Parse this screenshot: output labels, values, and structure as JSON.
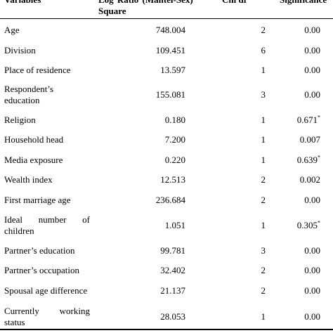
{
  "header": {
    "variable": "Variables",
    "lr_line1": "Log    Ratio    (Mantel-Sex)",
    "lr_line2": "Square",
    "df": "Chi   df",
    "sig": "Significance"
  },
  "rows": [
    {
      "variable": "Age",
      "lr": "748.004",
      "df": "2",
      "sig": "0.00",
      "star": ""
    },
    {
      "variable": "Division",
      "lr": "109.451",
      "df": "6",
      "sig": "0.00",
      "star": ""
    },
    {
      "variable": "Place of residence",
      "lr": "13.597",
      "df": "1",
      "sig": "0.00",
      "star": ""
    },
    {
      "variable_l1": "Respondent’s",
      "variable_l2": "education",
      "lr": "155.081",
      "df": "3",
      "sig": "0.00",
      "star": ""
    },
    {
      "variable": "Religion",
      "lr": "0.180",
      "df": "1",
      "sig": "0.671",
      "star": "*"
    },
    {
      "variable": "Household head",
      "lr": "7.200",
      "df": "1",
      "sig": "0.007",
      "star": ""
    },
    {
      "variable": "Media exposure",
      "lr": "0.220",
      "df": "1",
      "sig": "0.639",
      "star": "*"
    },
    {
      "variable": "Wealth index",
      "lr": "12.513",
      "df": "2",
      "sig": "0.002",
      "star": ""
    },
    {
      "variable": "First marriage age",
      "lr": "236.684",
      "df": "2",
      "sig": "0.00",
      "star": ""
    },
    {
      "variable_l1": "Ideal number of",
      "variable_l2": "children",
      "lr": "1.051",
      "df": "1",
      "sig": "0.305",
      "star": "*"
    },
    {
      "variable": "Partner’s education",
      "lr": "99.781",
      "df": "3",
      "sig": "0.00",
      "star": ""
    },
    {
      "variable": "Partner’s occupation",
      "lr": "32.402",
      "df": "2",
      "sig": "0.00",
      "star": ""
    },
    {
      "variable": "Spousal age difference",
      "lr": "21.137",
      "df": "2",
      "sig": "0.00",
      "star": ""
    },
    {
      "variable_l1": "Currently working",
      "variable_l2": "status",
      "lr": "28.053",
      "df": "1",
      "sig": "0.00",
      "star": ""
    }
  ]
}
